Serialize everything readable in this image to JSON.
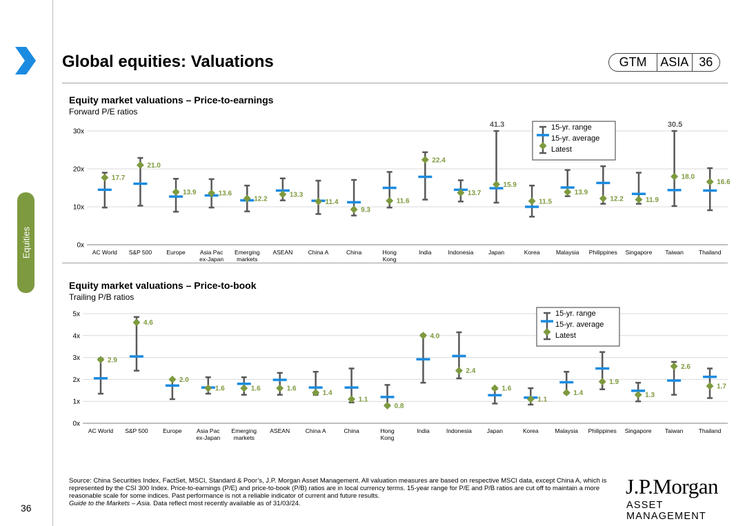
{
  "header": {
    "title": "Global equities: Valuations",
    "badge": [
      "GTM",
      "ASIA",
      "36"
    ]
  },
  "side_tab": {
    "label": "Equities"
  },
  "page_number": "36",
  "colors": {
    "accent": "#7e9a3f",
    "average": "#1a8be0",
    "latest": "#7e9a3f",
    "range": "#595959",
    "label": "#7e9a3f"
  },
  "legend": {
    "range": "15-yr. range",
    "average": "15-yr. average",
    "latest": "Latest"
  },
  "chart_data": [
    {
      "type": "range-bar",
      "title": "Equity market valuations – Price-to-earnings",
      "subtitle": "Forward P/E ratios",
      "yticks": [
        "0x",
        "10x",
        "20x",
        "30x"
      ],
      "ylim": [
        0,
        30
      ],
      "categories": [
        [
          "AC World"
        ],
        [
          "S&P 500"
        ],
        [
          "Europe"
        ],
        [
          "Asia Pac",
          "ex-Japan"
        ],
        [
          "Emerging",
          "markets"
        ],
        [
          "ASEAN"
        ],
        [
          "China A"
        ],
        [
          "China"
        ],
        [
          "Hong",
          "Kong"
        ],
        [
          "India"
        ],
        [
          "Indonesia"
        ],
        [
          "Japan"
        ],
        [
          "Korea"
        ],
        [
          "Malaysia"
        ],
        [
          "Philippines"
        ],
        [
          "Singapore"
        ],
        [
          "Taiwan"
        ],
        [
          "Thailand"
        ]
      ],
      "range_max": [
        19.0,
        22.9,
        17.4,
        17.3,
        15.6,
        17.5,
        16.9,
        17.1,
        19.2,
        24.4,
        17.0,
        41.3,
        15.6,
        19.7,
        20.7,
        19.0,
        30.5,
        20.2
      ],
      "range_min": [
        9.8,
        10.3,
        8.7,
        9.8,
        8.8,
        11.7,
        8.1,
        7.7,
        9.8,
        11.9,
        11.4,
        11.1,
        7.4,
        12.8,
        10.8,
        10.8,
        10.2,
        9.1
      ],
      "average": [
        14.5,
        16.1,
        12.7,
        13.0,
        11.7,
        14.3,
        11.6,
        11.2,
        15.0,
        17.9,
        14.5,
        14.9,
        10.0,
        15.1,
        16.3,
        13.4,
        14.4,
        14.3
      ],
      "latest": [
        17.7,
        21.0,
        13.9,
        13.6,
        12.2,
        13.3,
        11.4,
        9.3,
        11.6,
        22.4,
        13.7,
        15.9,
        11.5,
        13.9,
        12.2,
        11.9,
        18.0,
        16.6
      ],
      "latest_labels": [
        "17.7",
        "21.0",
        "13.9",
        "13.6",
        "12.2",
        "13.3",
        "11.4",
        "9.3",
        "11.6",
        "22.4",
        "13.7",
        "15.9",
        "11.5",
        "13.9",
        "12.2",
        "11.9",
        "18.0",
        "16.6"
      ],
      "cutoff_labels": [
        {
          "index": 11,
          "text": "41.3"
        },
        {
          "index": 16,
          "text": "30.5"
        }
      ]
    },
    {
      "type": "range-bar",
      "title": "Equity market valuations – Price-to-book",
      "subtitle": "Trailing P/B ratios",
      "yticks": [
        "0x",
        "1x",
        "2x",
        "3x",
        "4x",
        "5x"
      ],
      "ylim": [
        0,
        5
      ],
      "categories": [
        [
          "AC World"
        ],
        [
          "S&P 500"
        ],
        [
          "Europe"
        ],
        [
          "Asia Pac",
          "ex-Japan"
        ],
        [
          "Emerging",
          "markets"
        ],
        [
          "ASEAN"
        ],
        [
          "China A"
        ],
        [
          "China"
        ],
        [
          "Hong",
          "Kong"
        ],
        [
          "India"
        ],
        [
          "Indonesia"
        ],
        [
          "Japan"
        ],
        [
          "Korea"
        ],
        [
          "Malaysia"
        ],
        [
          "Philippines"
        ],
        [
          "Singapore"
        ],
        [
          "Taiwan"
        ],
        [
          "Thailand"
        ]
      ],
      "range_max": [
        2.95,
        4.85,
        2.0,
        2.1,
        2.1,
        2.3,
        2.35,
        2.5,
        1.75,
        4.05,
        4.15,
        1.55,
        1.6,
        2.35,
        3.25,
        1.85,
        2.8,
        2.5
      ],
      "range_min": [
        1.35,
        2.4,
        1.1,
        1.35,
        1.3,
        1.3,
        1.3,
        0.95,
        0.85,
        1.85,
        2.05,
        0.9,
        0.85,
        1.35,
        1.55,
        1.0,
        1.3,
        1.15
      ],
      "average": [
        2.05,
        3.05,
        1.72,
        1.63,
        1.8,
        1.98,
        1.63,
        1.63,
        1.2,
        2.92,
        3.07,
        1.28,
        1.17,
        1.87,
        2.5,
        1.48,
        1.95,
        2.12
      ],
      "latest": [
        2.9,
        4.6,
        2.0,
        1.6,
        1.6,
        1.6,
        1.4,
        1.1,
        0.8,
        4.0,
        2.4,
        1.6,
        1.1,
        1.4,
        1.9,
        1.3,
        2.6,
        1.7
      ],
      "latest_labels": [
        "2.9",
        "4.6",
        "2.0",
        "1.6",
        "1.6",
        "1.6",
        "1.4",
        "1.1",
        "0.8",
        "4.0",
        "2.4",
        "1.6",
        "1.1",
        "1.4",
        "1.9",
        "1.3",
        "2.6",
        "1.7"
      ],
      "cutoff_labels": []
    }
  ],
  "footer": {
    "source": "Source: China Securities Index, FactSet, MSCI, Standard & Poor’s, J.P. Morgan Asset Management. All valuation measures are based on respective MSCI data, except China A, which is represented by the CSI 300 Index. Price-to-earnings (P/E) and price-to-book (P/B) ratios are in local currency terms. 15-year range for P/E and P/B ratios are cut off to maintain a more reasonable scale for some indices. Past performance is not a reliable indicator of current and future results.",
    "guide": "Guide to the Markets – Asia.",
    "data_note": " Data reflect most recently available as of 31/03/24."
  },
  "logo": {
    "line1": "J.P.Morgan",
    "line2": "ASSET MANAGEMENT"
  }
}
